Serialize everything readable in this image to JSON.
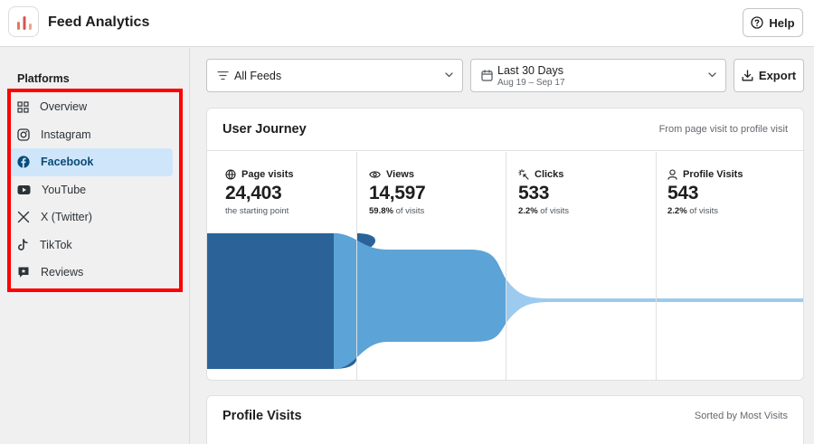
{
  "header": {
    "app_title": "Feed Analytics",
    "help_label": "Help"
  },
  "sidebar": {
    "heading": "Platforms",
    "items": [
      {
        "label": "Overview",
        "icon": "grid-icon",
        "active": false
      },
      {
        "label": "Instagram",
        "icon": "instagram-icon",
        "active": false
      },
      {
        "label": "Facebook",
        "icon": "facebook-icon",
        "active": true
      },
      {
        "label": "YouTube",
        "icon": "youtube-icon",
        "active": false
      },
      {
        "label": "X (Twitter)",
        "icon": "x-icon",
        "active": false
      },
      {
        "label": "TikTok",
        "icon": "tiktok-icon",
        "active": false
      },
      {
        "label": "Reviews",
        "icon": "reviews-icon",
        "active": false
      }
    ],
    "highlight_color": "#ff0000"
  },
  "toolbar": {
    "feeds_value": "All Feeds",
    "date_value": "Last 30 Days",
    "date_range": "Aug 19 – Sep 17",
    "export_label": "Export"
  },
  "journey": {
    "title": "User Journey",
    "note": "From page visit to profile visit",
    "stages": [
      {
        "label": "Page visits",
        "icon": "globe-icon",
        "value": "24,403",
        "sub_prefix": "",
        "sub_text": "the starting point"
      },
      {
        "label": "Views",
        "icon": "eye-icon",
        "value": "14,597",
        "sub_prefix": "59.8%",
        "sub_text": " of visits"
      },
      {
        "label": "Clicks",
        "icon": "sparkle-click-icon",
        "value": "533",
        "sub_prefix": "2.2%",
        "sub_text": " of visits"
      },
      {
        "label": "Profile Visits",
        "icon": "user-icon",
        "value": "543",
        "sub_prefix": "2.2%",
        "sub_text": " of visits"
      }
    ],
    "colors": [
      "#2b6399",
      "#5ca3d7",
      "#9ccbef",
      "#9ccbef"
    ]
  },
  "profile_visits": {
    "title": "Profile Visits",
    "note": "Sorted by Most Visits"
  }
}
